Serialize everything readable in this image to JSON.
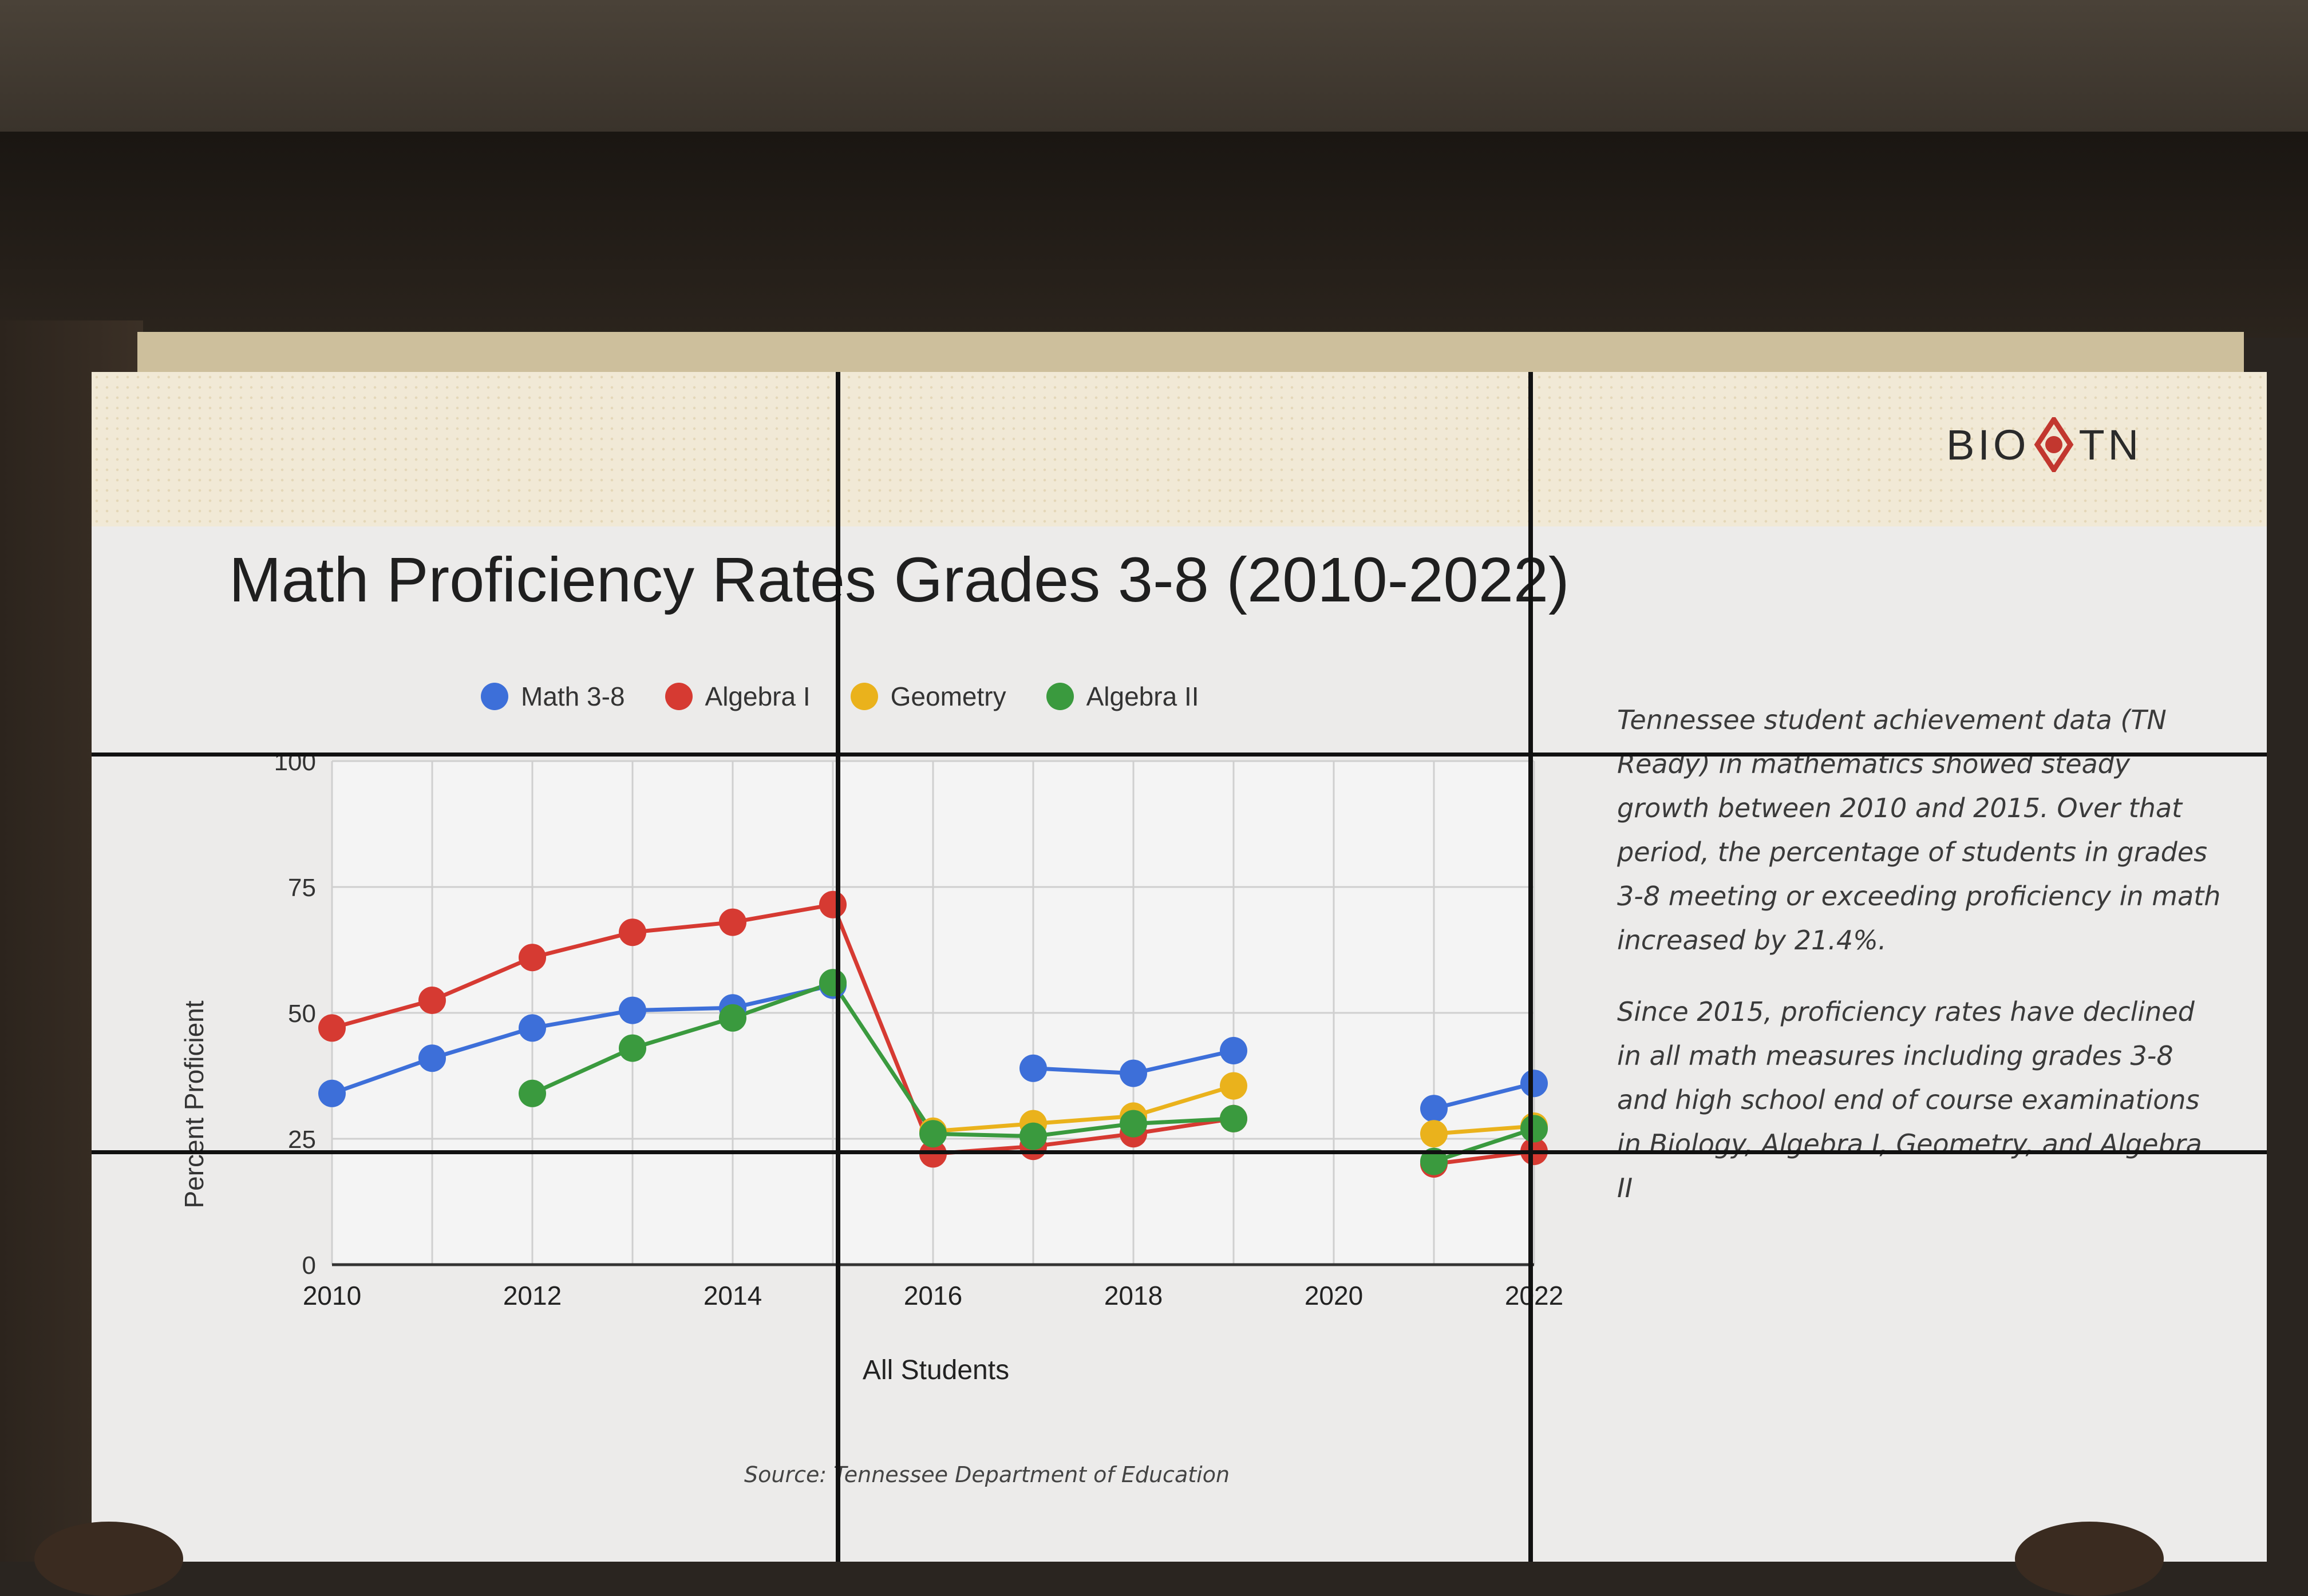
{
  "slide": {
    "logo_left": "BIO",
    "logo_right": "TN",
    "title": "Math Proficiency Rates Grades 3-8 (2010-2022)",
    "side_text": [
      "Tennessee student achievement data (TN Ready) in mathematics showed steady growth between 2010 and 2015. Over that period, the percentage of students in grades 3-8 meeting or exceeding proficiency in math increased by 21.4%.",
      "Since 2015, proficiency rates have declined in all math measures including grades 3-8 and high school end of course examinations in Biology, Algebra I, Geometry, and Algebra II"
    ],
    "source": "Source: Tennessee Department of Education"
  },
  "chart_data": {
    "type": "line",
    "xlabel": "All Students",
    "ylabel": "Percent Proficient",
    "xlim": [
      2010,
      2022
    ],
    "ylim": [
      0,
      100
    ],
    "x_ticks": [
      2010,
      2012,
      2014,
      2016,
      2018,
      2020,
      2022
    ],
    "y_ticks": [
      0,
      25,
      50,
      75,
      100
    ],
    "grid": true,
    "legend_position": "top",
    "series": [
      {
        "name": "Math 3-8",
        "color": "#3d6fd9",
        "points": [
          [
            2010,
            34
          ],
          [
            2011,
            41
          ],
          [
            2012,
            47
          ],
          [
            2013,
            50.5
          ],
          [
            2014,
            51
          ],
          [
            2015,
            55.5
          ],
          [
            2017,
            39
          ],
          [
            2018,
            38
          ],
          [
            2019,
            42.5
          ],
          [
            2021,
            31
          ],
          [
            2022,
            36
          ]
        ]
      },
      {
        "name": "Algebra I",
        "color": "#d63a32",
        "points": [
          [
            2010,
            47
          ],
          [
            2011,
            52.5
          ],
          [
            2012,
            61
          ],
          [
            2013,
            66
          ],
          [
            2014,
            68
          ],
          [
            2015,
            71.5
          ],
          [
            2016,
            22
          ],
          [
            2017,
            23.5
          ],
          [
            2018,
            26
          ],
          [
            2019,
            29
          ],
          [
            2021,
            20
          ],
          [
            2022,
            22.5
          ]
        ]
      },
      {
        "name": "Geometry",
        "color": "#eab21c",
        "points": [
          [
            2016,
            26.5
          ],
          [
            2017,
            28
          ],
          [
            2018,
            29.5
          ],
          [
            2019,
            35.5
          ],
          [
            2021,
            26
          ],
          [
            2022,
            27.5
          ]
        ]
      },
      {
        "name": "Algebra II",
        "color": "#3a9a3e",
        "points": [
          [
            2012,
            34
          ],
          [
            2013,
            43
          ],
          [
            2014,
            49
          ],
          [
            2015,
            56
          ],
          [
            2016,
            26
          ],
          [
            2017,
            25.5
          ],
          [
            2018,
            28
          ],
          [
            2019,
            29
          ],
          [
            2021,
            20.5
          ],
          [
            2022,
            27
          ]
        ]
      }
    ]
  }
}
